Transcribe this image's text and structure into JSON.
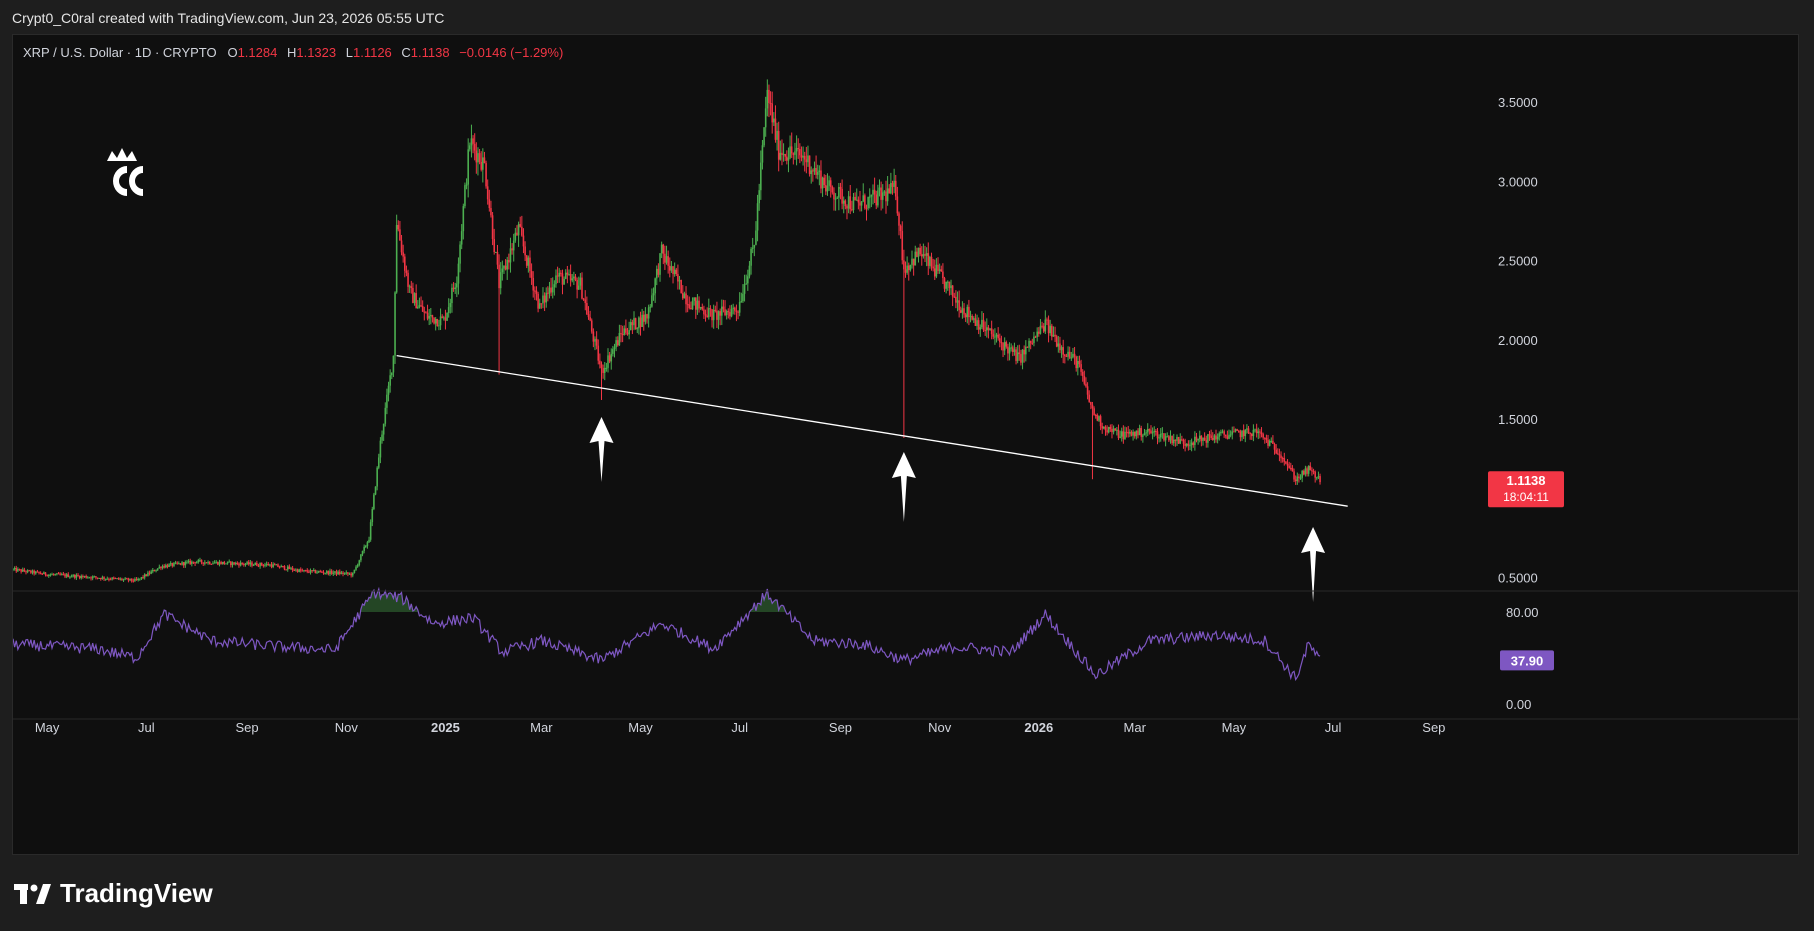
{
  "header": {
    "credit": "Crypt0_C0ral created with TradingView.com, Jun 23, 2026 05:55 UTC"
  },
  "symbol": {
    "name": "XRP / U.S. Dollar · 1D · CRYPTO",
    "open_label": "O",
    "open": "1.1284",
    "high_label": "H",
    "high": "1.1323",
    "low_label": "L",
    "low": "1.1126",
    "close_label": "C",
    "close": "1.1138",
    "change": "−0.0146 (−1.29%)"
  },
  "footer": {
    "brand": "TradingView"
  },
  "colors": {
    "up": "#26a69a",
    "up_candle": "#4caf50",
    "down": "#f23645",
    "rsi": "#7e57c2",
    "price_badge": "#f23645",
    "rsi_badge": "#7e57c2",
    "trendline": "#ffffff"
  },
  "icons": [
    "crown-cc-logo",
    "up-arrow-icon",
    "tradingview-logo-icon"
  ],
  "chart_data": [
    {
      "type": "candlestick",
      "title": "",
      "price_axis": {
        "ticks": [
          "3.5000",
          "3.0000",
          "2.5000",
          "2.0000",
          "1.5000",
          "0.5000"
        ],
        "ylim": [
          0.45,
          3.7
        ]
      },
      "time_axis": {
        "ticks": [
          "May",
          "Jul",
          "Sep",
          "Nov",
          "2025",
          "Mar",
          "May",
          "Jul",
          "Sep",
          "Nov",
          "2026",
          "Mar",
          "May",
          "Jul",
          "Sep"
        ],
        "bold_ticks": [
          "2025",
          "2026"
        ],
        "range": [
          "2024-04-10",
          "2026-09-30"
        ]
      },
      "price_path": [
        [
          "2024-04-10",
          0.55
        ],
        [
          "2024-05-01",
          0.52
        ],
        [
          "2024-06-01",
          0.5
        ],
        [
          "2024-06-25",
          0.48
        ],
        [
          "2024-07-10",
          0.57
        ],
        [
          "2024-08-01",
          0.6
        ],
        [
          "2024-08-20",
          0.59
        ],
        [
          "2024-09-15",
          0.58
        ],
        [
          "2024-10-05",
          0.54
        ],
        [
          "2024-10-25",
          0.53
        ],
        [
          "2024-11-05",
          0.52
        ],
        [
          "2024-11-15",
          0.75
        ],
        [
          "2024-11-22",
          1.35
        ],
        [
          "2024-11-30",
          1.9
        ],
        [
          "2024-12-02",
          2.75
        ],
        [
          "2024-12-10",
          2.3
        ],
        [
          "2024-12-20",
          2.15
        ],
        [
          "2024-12-31",
          2.12
        ],
        [
          "2025-01-08",
          2.4
        ],
        [
          "2025-01-16",
          3.25
        ],
        [
          "2025-01-25",
          3.1
        ],
        [
          "2025-02-03",
          2.35
        ],
        [
          "2025-02-15",
          2.7
        ],
        [
          "2025-02-28",
          2.2
        ],
        [
          "2025-03-10",
          2.4
        ],
        [
          "2025-03-25",
          2.35
        ],
        [
          "2025-04-07",
          1.8
        ],
        [
          "2025-04-20",
          2.05
        ],
        [
          "2025-05-05",
          2.15
        ],
        [
          "2025-05-14",
          2.55
        ],
        [
          "2025-05-30",
          2.25
        ],
        [
          "2025-06-15",
          2.15
        ],
        [
          "2025-06-30",
          2.2
        ],
        [
          "2025-07-10",
          2.6
        ],
        [
          "2025-07-18",
          3.55
        ],
        [
          "2025-07-25",
          3.2
        ],
        [
          "2025-08-10",
          3.15
        ],
        [
          "2025-08-25",
          2.95
        ],
        [
          "2025-09-10",
          2.85
        ],
        [
          "2025-09-25",
          2.9
        ],
        [
          "2025-10-05",
          2.95
        ],
        [
          "2025-10-10",
          2.45
        ],
        [
          "2025-10-20",
          2.55
        ],
        [
          "2025-11-01",
          2.4
        ],
        [
          "2025-11-15",
          2.2
        ],
        [
          "2025-12-01",
          2.05
        ],
        [
          "2025-12-20",
          1.88
        ],
        [
          "2026-01-05",
          2.1
        ],
        [
          "2026-01-15",
          1.95
        ],
        [
          "2026-01-25",
          1.85
        ],
        [
          "2026-02-03",
          1.55
        ],
        [
          "2026-02-10",
          1.45
        ],
        [
          "2026-02-20",
          1.4
        ],
        [
          "2026-03-10",
          1.42
        ],
        [
          "2026-04-01",
          1.35
        ],
        [
          "2026-04-25",
          1.4
        ],
        [
          "2026-05-15",
          1.42
        ],
        [
          "2026-05-30",
          1.28
        ],
        [
          "2026-06-08",
          1.12
        ],
        [
          "2026-06-16",
          1.18
        ],
        [
          "2026-06-23",
          1.114
        ]
      ],
      "marked_wicks": [
        {
          "date": "2025-04-07",
          "low": 1.62
        },
        {
          "date": "2025-10-10",
          "low": 1.38
        },
        {
          "date": "2026-02-03",
          "low": 1.12
        },
        {
          "date": "2025-02-03",
          "low": 1.78
        }
      ],
      "trendline": {
        "from": [
          "2024-12-02",
          1.9
        ],
        "to": [
          "2026-07-10",
          0.95
        ]
      },
      "support_arrows": [
        "2025-04-07",
        "2025-10-10",
        "2026-06-23"
      ],
      "last_price": {
        "value": "1.1138",
        "countdown": "18:04:11"
      }
    },
    {
      "type": "line",
      "title": "",
      "rsi_axis": {
        "ticks": [
          "80.00",
          "0.00"
        ],
        "ylim": [
          -5,
          105
        ]
      },
      "rsi_path": [
        [
          "2024-04-10",
          52
        ],
        [
          "2024-06-01",
          48
        ],
        [
          "2024-06-25",
          40
        ],
        [
          "2024-07-12",
          78
        ],
        [
          "2024-08-10",
          55
        ],
        [
          "2024-09-20",
          50
        ],
        [
          "2024-10-25",
          47
        ],
        [
          "2024-11-18",
          97
        ],
        [
          "2024-12-05",
          92
        ],
        [
          "2024-12-25",
          70
        ],
        [
          "2025-01-18",
          75
        ],
        [
          "2025-02-05",
          45
        ],
        [
          "2025-03-01",
          55
        ],
        [
          "2025-04-07",
          38
        ],
        [
          "2025-05-14",
          70
        ],
        [
          "2025-06-15",
          48
        ],
        [
          "2025-07-18",
          96
        ],
        [
          "2025-08-15",
          55
        ],
        [
          "2025-09-15",
          52
        ],
        [
          "2025-10-10",
          38
        ],
        [
          "2025-11-10",
          50
        ],
        [
          "2025-12-15",
          45
        ],
        [
          "2026-01-05",
          78
        ],
        [
          "2026-02-05",
          25
        ],
        [
          "2026-03-10",
          55
        ],
        [
          "2026-04-20",
          60
        ],
        [
          "2026-05-20",
          55
        ],
        [
          "2026-06-08",
          22
        ],
        [
          "2026-06-16",
          52
        ],
        [
          "2026-06-23",
          37.9
        ]
      ],
      "last_value": "37.90"
    }
  ]
}
